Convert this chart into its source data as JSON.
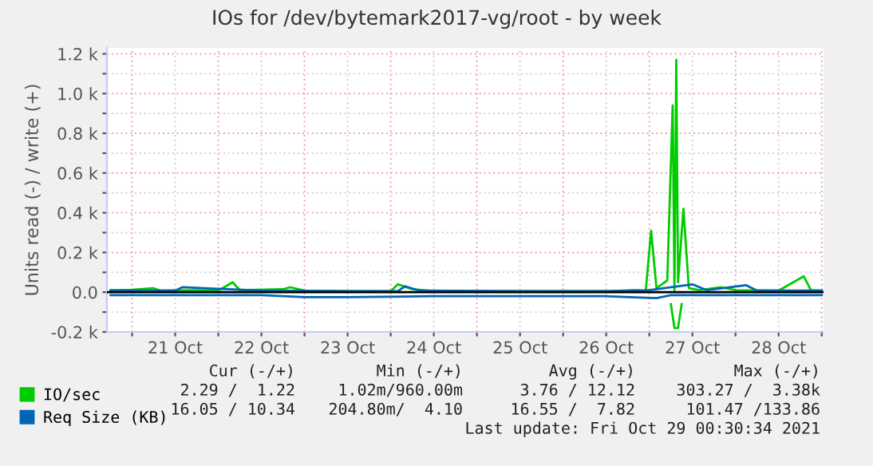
{
  "chart_data": {
    "type": "line",
    "title": "IOs for /dev/bytemark2017-vg/root - by week",
    "ylabel": "Units read (-) / write (+)",
    "xlim": [
      "2021-10-20T17:00",
      "2021-10-29T00:30"
    ],
    "xticks": [
      {
        "value": "2021-10-21T00:00",
        "label": null
      },
      {
        "value": "2021-10-21T12:00",
        "label": "21 Oct"
      },
      {
        "value": "2021-10-22T00:00",
        "label": null
      },
      {
        "value": "2021-10-22T12:00",
        "label": "22 Oct"
      },
      {
        "value": "2021-10-23T00:00",
        "label": null
      },
      {
        "value": "2021-10-23T12:00",
        "label": "23 Oct"
      },
      {
        "value": "2021-10-24T00:00",
        "label": null
      },
      {
        "value": "2021-10-24T12:00",
        "label": "24 Oct"
      },
      {
        "value": "2021-10-25T00:00",
        "label": null
      },
      {
        "value": "2021-10-25T12:00",
        "label": "25 Oct"
      },
      {
        "value": "2021-10-26T00:00",
        "label": null
      },
      {
        "value": "2021-10-26T12:00",
        "label": "26 Oct"
      },
      {
        "value": "2021-10-27T00:00",
        "label": null
      },
      {
        "value": "2021-10-27T12:00",
        "label": "27 Oct"
      },
      {
        "value": "2021-10-28T00:00",
        "label": null
      },
      {
        "value": "2021-10-28T12:00",
        "label": "28 Oct"
      },
      {
        "value": "2021-10-29T00:00",
        "label": null
      }
    ],
    "ylim": [
      -200,
      1230
    ],
    "yticks": [
      {
        "value": -200,
        "label": "-0.2 k"
      },
      {
        "value": -100,
        "label": null
      },
      {
        "value": 0,
        "label": "0.0"
      },
      {
        "value": 100,
        "label": null
      },
      {
        "value": 200,
        "label": "0.2 k"
      },
      {
        "value": 300,
        "label": null
      },
      {
        "value": 400,
        "label": "0.4 k"
      },
      {
        "value": 500,
        "label": null
      },
      {
        "value": 600,
        "label": "0.6 k"
      },
      {
        "value": 700,
        "label": null
      },
      {
        "value": 800,
        "label": "0.8 k"
      },
      {
        "value": 900,
        "label": null
      },
      {
        "value": 1000,
        "label": "1.0 k"
      },
      {
        "value": 1100,
        "label": null
      },
      {
        "value": 1200,
        "label": "1.2 k"
      }
    ],
    "grid": true,
    "legend": "bottom left",
    "marker": "none",
    "line_style": "solid",
    "ref_lines": [
      {
        "axis": "y",
        "value": 0,
        "color": "#000000"
      }
    ],
    "series": [
      {
        "name": "IO/sec",
        "color": "#00cc00",
        "x": [
          "2021-10-20T18:00",
          "2021-10-21T00:00",
          "2021-10-21T06:00",
          "2021-10-21T08:00",
          "2021-10-21T18:00",
          "2021-10-22T00:00",
          "2021-10-22T04:00",
          "2021-10-22T06:00",
          "2021-10-22T18:00",
          "2021-10-22T20:00",
          "2021-10-23T00:00",
          "2021-10-23T12:00",
          "2021-10-24T00:00",
          "2021-10-24T02:00",
          "2021-10-24T06:00",
          "2021-10-24T12:00",
          "2021-10-25T00:00",
          "2021-10-25T12:00",
          "2021-10-26T00:00",
          "2021-10-26T12:00",
          "2021-10-26T20:00",
          "2021-10-26T23:00",
          "2021-10-27T00:30",
          "2021-10-27T02:00",
          "2021-10-27T05:00",
          "2021-10-27T06:30",
          "2021-10-27T07:00",
          "2021-10-27T07:30",
          "2021-10-27T08:00",
          "2021-10-27T09:30",
          "2021-10-27T11:00",
          "2021-10-27T14:00",
          "2021-10-27T20:00",
          "2021-10-28T00:00",
          "2021-10-28T12:00",
          "2021-10-28T19:00",
          "2021-10-28T21:00",
          "2021-10-29T00:00"
        ],
        "values": [
          10,
          12,
          20,
          8,
          10,
          8,
          50,
          10,
          15,
          25,
          8,
          5,
          5,
          40,
          15,
          5,
          5,
          5,
          5,
          5,
          10,
          5,
          310,
          20,
          60,
          940,
          10,
          1170,
          50,
          420,
          20,
          10,
          25,
          10,
          8,
          80,
          10,
          8
        ]
      },
      {
        "color": "#00cc00",
        "x": [
          "2021-10-27T06:00",
          "2021-10-27T07:00",
          "2021-10-27T08:00",
          "2021-10-27T09:00"
        ],
        "values": [
          -60,
          -180,
          -180,
          -60
        ]
      },
      {
        "name": "Req Size (KB)",
        "color": "#0066b3",
        "x": [
          "2021-10-20T18:00",
          "2021-10-21T12:00",
          "2021-10-21T14:00",
          "2021-10-22T12:00",
          "2021-10-23T12:00",
          "2021-10-24T02:00",
          "2021-10-24T04:00",
          "2021-10-24T08:00",
          "2021-10-25T12:00",
          "2021-10-26T12:00",
          "2021-10-27T00:00",
          "2021-10-27T12:00",
          "2021-10-27T16:00",
          "2021-10-28T03:00",
          "2021-10-28T06:00",
          "2021-10-29T00:00"
        ],
        "values": [
          8,
          8,
          25,
          8,
          5,
          5,
          30,
          8,
          5,
          5,
          10,
          40,
          10,
          35,
          8,
          8
        ]
      },
      {
        "color": "#0066b3",
        "x": [
          "2021-10-20T18:00",
          "2021-10-21T12:00",
          "2021-10-22T12:00",
          "2021-10-23T00:00",
          "2021-10-23T12:00",
          "2021-10-24T12:00",
          "2021-10-25T12:00",
          "2021-10-26T12:00",
          "2021-10-27T02:00",
          "2021-10-27T06:00",
          "2021-10-27T12:00",
          "2021-10-28T12:00",
          "2021-10-29T00:00"
        ],
        "values": [
          -15,
          -15,
          -15,
          -25,
          -25,
          -20,
          -20,
          -20,
          -30,
          -15,
          -15,
          -15,
          -15
        ]
      }
    ],
    "annotations": [
      "Cur (-/+)",
      "Min (-/+)",
      "Avg (-/+)",
      "Max (-/+)",
      "2.29 /  1.22",
      "1.02m/960.00m",
      "3.76 / 12.12",
      "303.27 /  3.38k",
      "16.05 / 10.34",
      "204.80m/  4.10",
      "16.55 /  7.82",
      "101.47 /133.86",
      "Last update: Fri Oct 29 00:30:34 2021"
    ]
  }
}
